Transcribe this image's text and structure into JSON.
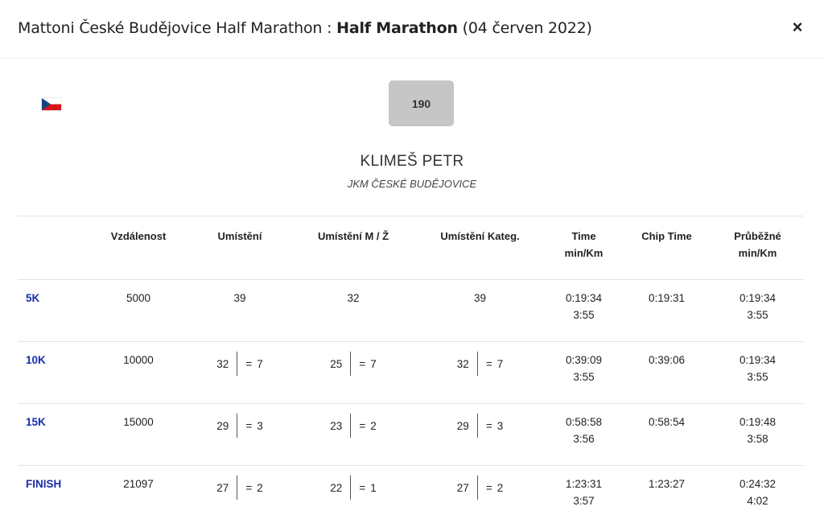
{
  "modal": {
    "title_prefix": "Mattoni České Budějovice Half Marathon :",
    "title_event": "Half Marathon",
    "title_date": "(04 červen 2022)",
    "close_label": "×"
  },
  "runner": {
    "flag_icon": "czech-flag",
    "bib": "190",
    "name": "KLIMEŠ PETR",
    "club": "JKM ČESKÉ BUDĚJOVICE"
  },
  "table": {
    "headers": [
      "",
      "Vzdálenost",
      "Umístění",
      "Umístění M / Ž",
      "Umístění Kateg.",
      "Time\nmin/Km",
      "Chip Time",
      "Průběžné\nmin/Km"
    ],
    "rows": [
      {
        "split": "5K",
        "distance": "5000",
        "place": "39",
        "place_trend": "",
        "gender_place": "32",
        "gender_trend": "",
        "cat_place": "39",
        "cat_trend": "",
        "time": "0:19:34",
        "pace": "3:55",
        "chip": "0:19:31",
        "running": "0:19:34",
        "running_pace": "3:55"
      },
      {
        "split": "10K",
        "distance": "10000",
        "place": "32",
        "place_trend": "7",
        "gender_place": "25",
        "gender_trend": "7",
        "cat_place": "32",
        "cat_trend": "7",
        "time": "0:39:09",
        "pace": "3:55",
        "chip": "0:39:06",
        "running": "0:19:34",
        "running_pace": "3:55"
      },
      {
        "split": "15K",
        "distance": "15000",
        "place": "29",
        "place_trend": "3",
        "gender_place": "23",
        "gender_trend": "2",
        "cat_place": "29",
        "cat_trend": "3",
        "time": "0:58:58",
        "pace": "3:56",
        "chip": "0:58:54",
        "running": "0:19:48",
        "running_pace": "3:58"
      },
      {
        "split": "FINISH",
        "distance": "21097",
        "place": "27",
        "place_trend": "2",
        "gender_place": "22",
        "gender_trend": "1",
        "cat_place": "27",
        "cat_trend": "2",
        "time": "1:23:31",
        "pace": "3:57",
        "chip": "1:23:27",
        "running": "0:24:32",
        "running_pace": "4:02"
      }
    ]
  },
  "colors": {
    "split_label": "#1a2ea8",
    "bib_bg": "#c6c6c6"
  }
}
